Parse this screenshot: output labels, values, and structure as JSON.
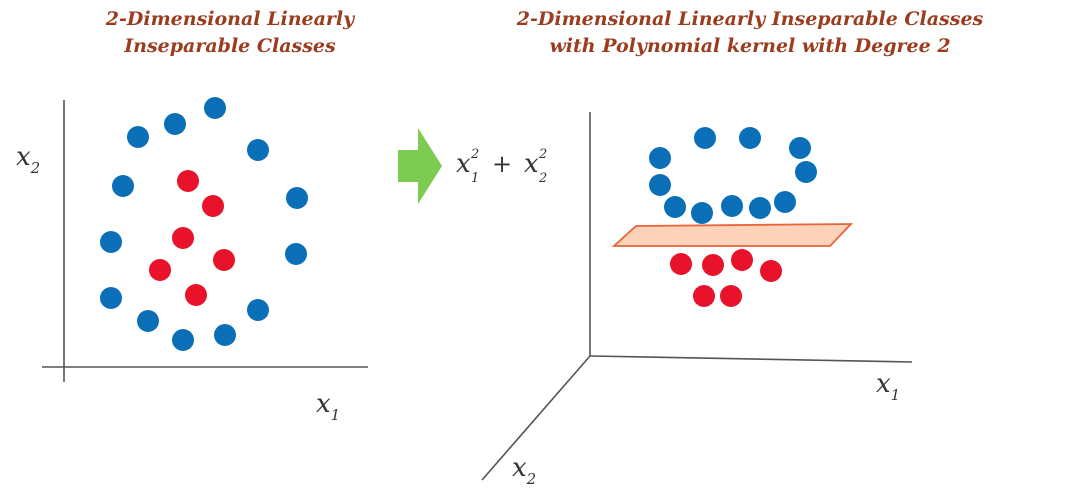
{
  "left_panel": {
    "title_line1": "2-Dimensional Linearly",
    "title_line2": "Inseparable Classes",
    "axis_x_var": "x",
    "axis_x_sub": "1",
    "axis_y_var": "x",
    "axis_y_sub": "2"
  },
  "right_panel": {
    "title_line1": "2-Dimensional Linearly Inseparable Classes",
    "title_line2": "with Polynomial kernel with Degree 2",
    "axis_x_var": "x",
    "axis_x_sub": "1",
    "axis_z_var": "x",
    "axis_z_sub": "2",
    "axis_vertical_term1_var": "x",
    "axis_vertical_term1_sup": "2",
    "axis_vertical_term1_sub": "1",
    "axis_vertical_plus": "+",
    "axis_vertical_term2_var": "x",
    "axis_vertical_term2_sup": "2",
    "axis_vertical_term2_sub": "2"
  },
  "colors": {
    "title": "#9a3c1d",
    "class_blue": "#0b6fb8",
    "class_red": "#e8122a",
    "arrow": "#7ccc52",
    "plane_fill": "#fcd2b8",
    "plane_stroke": "#e8643a",
    "axis": "#555555"
  },
  "icons": {
    "transform_arrow": "right-arrow-icon"
  }
}
